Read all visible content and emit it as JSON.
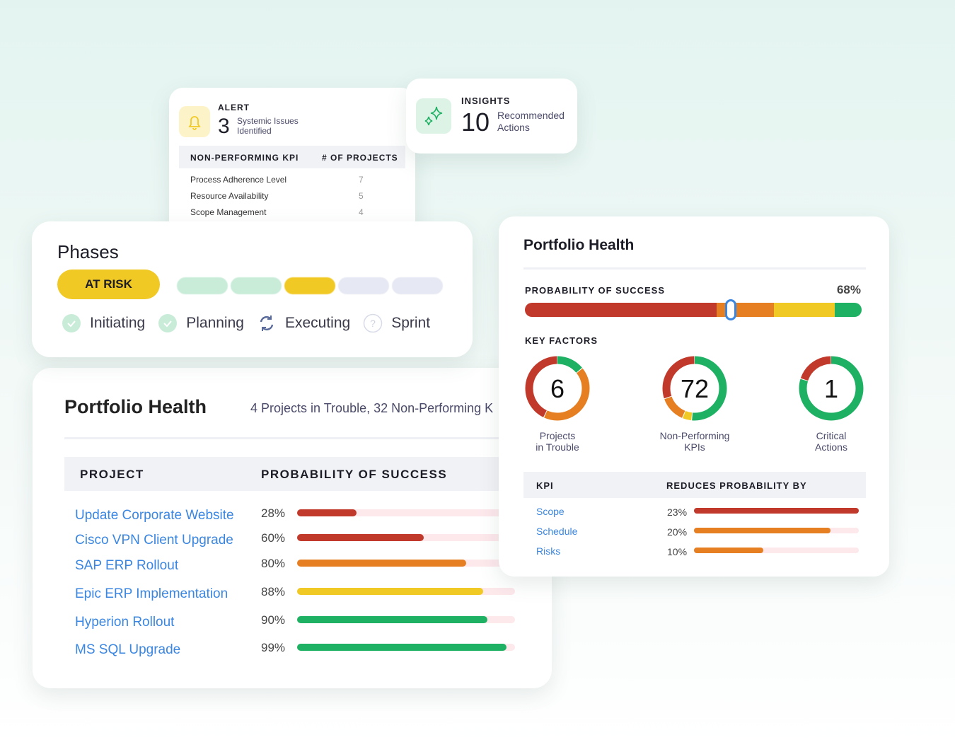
{
  "alert": {
    "title": "ALERT",
    "count": "3",
    "text1": "Systemic Issues",
    "text2": "Identified",
    "icon": "bell-icon",
    "col1": "NON-PERFORMING KPI",
    "col2": "# OF PROJECTS",
    "rows": [
      {
        "kpi": "Process Adherence Level",
        "n": "7"
      },
      {
        "kpi": "Resource Availability",
        "n": "5"
      },
      {
        "kpi": "Scope Management",
        "n": "4"
      }
    ]
  },
  "insights": {
    "title": "INSIGHTS",
    "count": "10",
    "text1": "Recommended",
    "text2": "Actions",
    "icon": "sparkle-icon"
  },
  "phases": {
    "title": "Phases",
    "status": "AT RISK",
    "segments": [
      "#c9ecd9",
      "#c9ecd9",
      "#f1c924",
      "#e6e8f3",
      "#e6e8f3"
    ],
    "steps": [
      {
        "label": "Initiating",
        "state": "done"
      },
      {
        "label": "Planning",
        "state": "done"
      },
      {
        "label": "Executing",
        "state": "active"
      },
      {
        "label": "Sprint",
        "state": "pending"
      }
    ]
  },
  "projects": {
    "title": "Portfolio Health",
    "subtitle": "4 Projects in Trouble, 32 Non-Performing K",
    "col1": "PROJECT",
    "col2": "PROBABILITY OF SUCCESS",
    "rows": [
      {
        "name": "Update Corporate Website",
        "pct": "28%",
        "value": 28,
        "color": "#c0392b"
      },
      {
        "name": "Cisco VPN Client Upgrade",
        "pct": "60%",
        "value": 60,
        "color": "#c0392b"
      },
      {
        "name": "SAP ERP Rollout",
        "pct": "80%",
        "value": 80,
        "color": "#e67e22"
      },
      {
        "name": "Epic ERP Implementation",
        "pct": "88%",
        "value": 88,
        "color": "#f1c924"
      },
      {
        "name": "Hyperion Rollout",
        "pct": "90%",
        "value": 90,
        "color": "#1fb163"
      },
      {
        "name": "MS SQL Upgrade",
        "pct": "99%",
        "value": 99,
        "color": "#1fb163"
      }
    ]
  },
  "health": {
    "title": "Portfolio Health",
    "prob_label": "PROBABILITY OF SUCCESS",
    "prob_value": "68%",
    "key_factors": "KEY FACTORS",
    "donuts": [
      {
        "center": "6",
        "label1": "Projects",
        "label2": "in Trouble",
        "segments": [
          {
            "v": 1,
            "c": "#1fb163"
          },
          {
            "v": 3,
            "c": "#e67e22"
          },
          {
            "v": 3,
            "c": "#c0392b"
          }
        ]
      },
      {
        "center": "72",
        "label1": "Non-Performing",
        "label2": "KPIs",
        "segments": [
          {
            "v": 77,
            "c": "#1fb163"
          },
          {
            "v": 7,
            "c": "#f1c924"
          },
          {
            "v": 20,
            "c": "#e67e22"
          },
          {
            "v": 45,
            "c": "#c0392b"
          }
        ]
      },
      {
        "center": "1",
        "label1": "Critical",
        "label2": "Actions",
        "segments": [
          {
            "v": 4,
            "c": "#1fb163"
          },
          {
            "v": 1,
            "c": "#c0392b"
          }
        ]
      }
    ],
    "col1": "KPI",
    "col2": "REDUCES PROBABILITY BY",
    "kpis": [
      {
        "name": "Scope",
        "pct": "23%",
        "fill": 100,
        "color": "#c0392b"
      },
      {
        "name": "Schedule",
        "pct": "20%",
        "fill": 83,
        "color": "#e67e22"
      },
      {
        "name": "Risks",
        "pct": "10%",
        "fill": 42,
        "color": "#e67e22"
      }
    ]
  }
}
